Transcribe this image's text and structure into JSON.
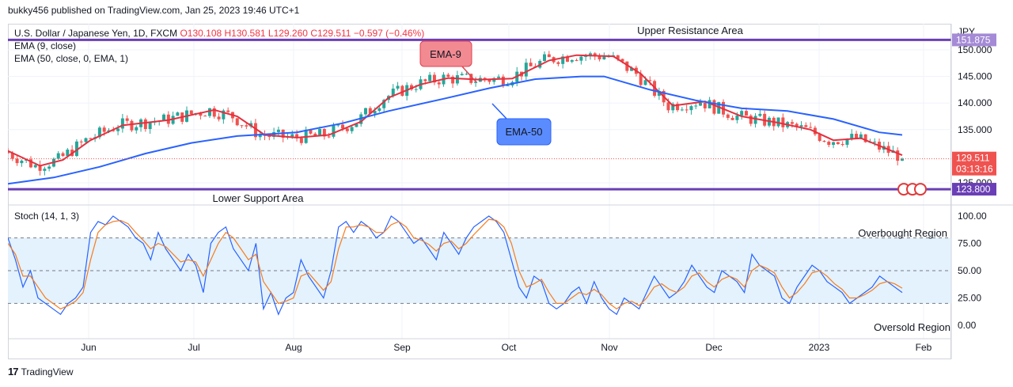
{
  "header": {
    "publisher_line": "bukky456 published on TradingView.com, Jan 25, 2023 19:46 UTC+1"
  },
  "legend": {
    "symbol_line": "U.S. Dollar / Japanese Yen, 1D, FXCM",
    "ohlc": {
      "o": "O130.108",
      "h": "H130.581",
      "l": "L129.260",
      "c": "C129.511",
      "chg": "−0.597 (−0.46%)"
    },
    "ema9_label": "EMA (9, close)",
    "ema50_label": "EMA (50, close, 0, EMA, 1)",
    "stoch_label": "Stoch (14, 1, 3)"
  },
  "annotations": {
    "upper": "Upper Resistance Area",
    "lower": "Lower Support Area",
    "ema9": "EMA-9",
    "ema50": "EMA-50",
    "overbought": "Overbought Region",
    "oversold": "Oversold Region"
  },
  "price_axis": {
    "currency": "JPY",
    "ticks": [
      "150.000",
      "145.000",
      "140.000",
      "135.000",
      "125.000"
    ],
    "tick_values": [
      150,
      145,
      140,
      135,
      125
    ],
    "last_price": "129.511",
    "countdown": "03:13:16",
    "support_value": "123.800",
    "resistance_value": "151.875"
  },
  "stoch_axis": {
    "ticks": [
      "100.00",
      "75.00",
      "50.00",
      "25.00",
      "0.00"
    ],
    "tick_values": [
      100,
      75,
      50,
      25,
      0
    ]
  },
  "time_axis": [
    "Jun",
    "Jul",
    "Aug",
    "Sep",
    "Oct",
    "Nov",
    "Dec",
    "2023",
    "Feb"
  ],
  "footer": {
    "brand": "TradingView"
  },
  "colors": {
    "up": "#26a69a",
    "down": "#ef5350",
    "ema9": "#e3303f",
    "ema50": "#2962ff",
    "level": "#6a3fb5",
    "stoch_k": "#2962ff",
    "stoch_d": "#f57c1f",
    "band": "#e3f2fd"
  },
  "chart_data": [
    {
      "type": "candlestick",
      "title": "U.S. Dollar / Japanese Yen, 1D, FXCM",
      "ylim": [
        122.5,
        153
      ],
      "last_close": 129.511,
      "levels": [
        {
          "name": "Upper Resistance Area",
          "value": 151.875
        },
        {
          "name": "Lower Support Area",
          "value": 123.8
        }
      ],
      "series": [
        {
          "name": "EMA-9",
          "points": [
            [
              0,
              131
            ],
            [
              7,
              128.2
            ],
            [
              12,
              129.3
            ],
            [
              18,
              133
            ],
            [
              25,
              135.8
            ],
            [
              35,
              136.8
            ],
            [
              45,
              138.7
            ],
            [
              50,
              137.5
            ],
            [
              56,
              134
            ],
            [
              63,
              133.5
            ],
            [
              70,
              134
            ],
            [
              77,
              136.5
            ],
            [
              83,
              141
            ],
            [
              90,
              143.5
            ],
            [
              96,
              144.7
            ],
            [
              103,
              144.4
            ],
            [
              110,
              144.6
            ],
            [
              118,
              148
            ],
            [
              124,
              149
            ],
            [
              132,
              148.8
            ],
            [
              138,
              145.5
            ],
            [
              145,
              139.5
            ],
            [
              152,
              140.3
            ],
            [
              160,
              137.5
            ],
            [
              168,
              136.3
            ],
            [
              175,
              135
            ],
            [
              180,
              133
            ],
            [
              186,
              133.4
            ],
            [
              195,
              130.2
            ]
          ]
        },
        {
          "name": "EMA-50",
          "points": [
            [
              0,
              124.8
            ],
            [
              10,
              126
            ],
            [
              20,
              128
            ],
            [
              30,
              130.5
            ],
            [
              40,
              132.5
            ],
            [
              50,
              133.8
            ],
            [
              56,
              134.1
            ],
            [
              63,
              134.5
            ],
            [
              73,
              136.2
            ],
            [
              83,
              138.5
            ],
            [
              95,
              140.8
            ],
            [
              105,
              142.8
            ],
            [
              115,
              144.5
            ],
            [
              125,
              145
            ],
            [
              130,
              145
            ],
            [
              140,
              142.5
            ],
            [
              150,
              140.5
            ],
            [
              160,
              139
            ],
            [
              170,
              138.5
            ],
            [
              180,
              137
            ],
            [
              190,
              134.5
            ],
            [
              195,
              134
            ]
          ]
        }
      ]
    },
    {
      "type": "line",
      "title": "Stoch (14, 1, 3)",
      "ylim": [
        -20,
        110
      ],
      "reference_lines": [
        80,
        50,
        20
      ],
      "series": [
        {
          "name": "%K",
          "values": [
            80,
            60,
            35,
            50,
            25,
            20,
            15,
            10,
            20,
            25,
            35,
            85,
            95,
            92,
            100,
            95,
            90,
            80,
            75,
            60,
            85,
            70,
            60,
            50,
            65,
            55,
            30,
            75,
            85,
            90,
            70,
            60,
            50,
            75,
            15,
            30,
            10,
            25,
            30,
            60,
            45,
            35,
            25,
            50,
            90,
            95,
            85,
            95,
            90,
            80,
            85,
            100,
            95,
            85,
            75,
            80,
            70,
            60,
            85,
            75,
            65,
            80,
            90,
            95,
            100,
            95,
            85,
            60,
            35,
            25,
            45,
            40,
            20,
            15,
            20,
            30,
            35,
            20,
            40,
            25,
            15,
            10,
            25,
            20,
            15,
            30,
            45,
            35,
            25,
            30,
            40,
            55,
            45,
            35,
            30,
            50,
            45,
            40,
            30,
            65,
            55,
            50,
            45,
            25,
            20,
            35,
            45,
            55,
            50,
            40,
            35,
            30,
            20,
            25,
            30,
            35,
            45,
            40,
            35,
            30
          ]
        },
        {
          "name": "%D",
          "values": [
            75,
            65,
            45,
            45,
            35,
            25,
            20,
            15,
            18,
            22,
            30,
            60,
            85,
            92,
            95,
            96,
            93,
            85,
            78,
            70,
            75,
            72,
            65,
            58,
            60,
            58,
            45,
            60,
            75,
            85,
            80,
            70,
            60,
            65,
            40,
            30,
            20,
            22,
            25,
            45,
            48,
            40,
            32,
            40,
            70,
            90,
            90,
            92,
            90,
            85,
            85,
            92,
            95,
            90,
            80,
            78,
            74,
            68,
            75,
            77,
            70,
            75,
            83,
            90,
            97,
            96,
            90,
            75,
            50,
            35,
            38,
            42,
            30,
            20,
            20,
            25,
            30,
            28,
            33,
            28,
            20,
            15,
            20,
            22,
            18,
            25,
            35,
            38,
            33,
            30,
            35,
            45,
            48,
            40,
            35,
            42,
            45,
            42,
            35,
            50,
            55,
            52,
            48,
            35,
            25,
            30,
            38,
            48,
            50,
            45,
            38,
            33,
            25,
            25,
            28,
            32,
            38,
            40,
            38,
            34
          ]
        }
      ]
    }
  ]
}
